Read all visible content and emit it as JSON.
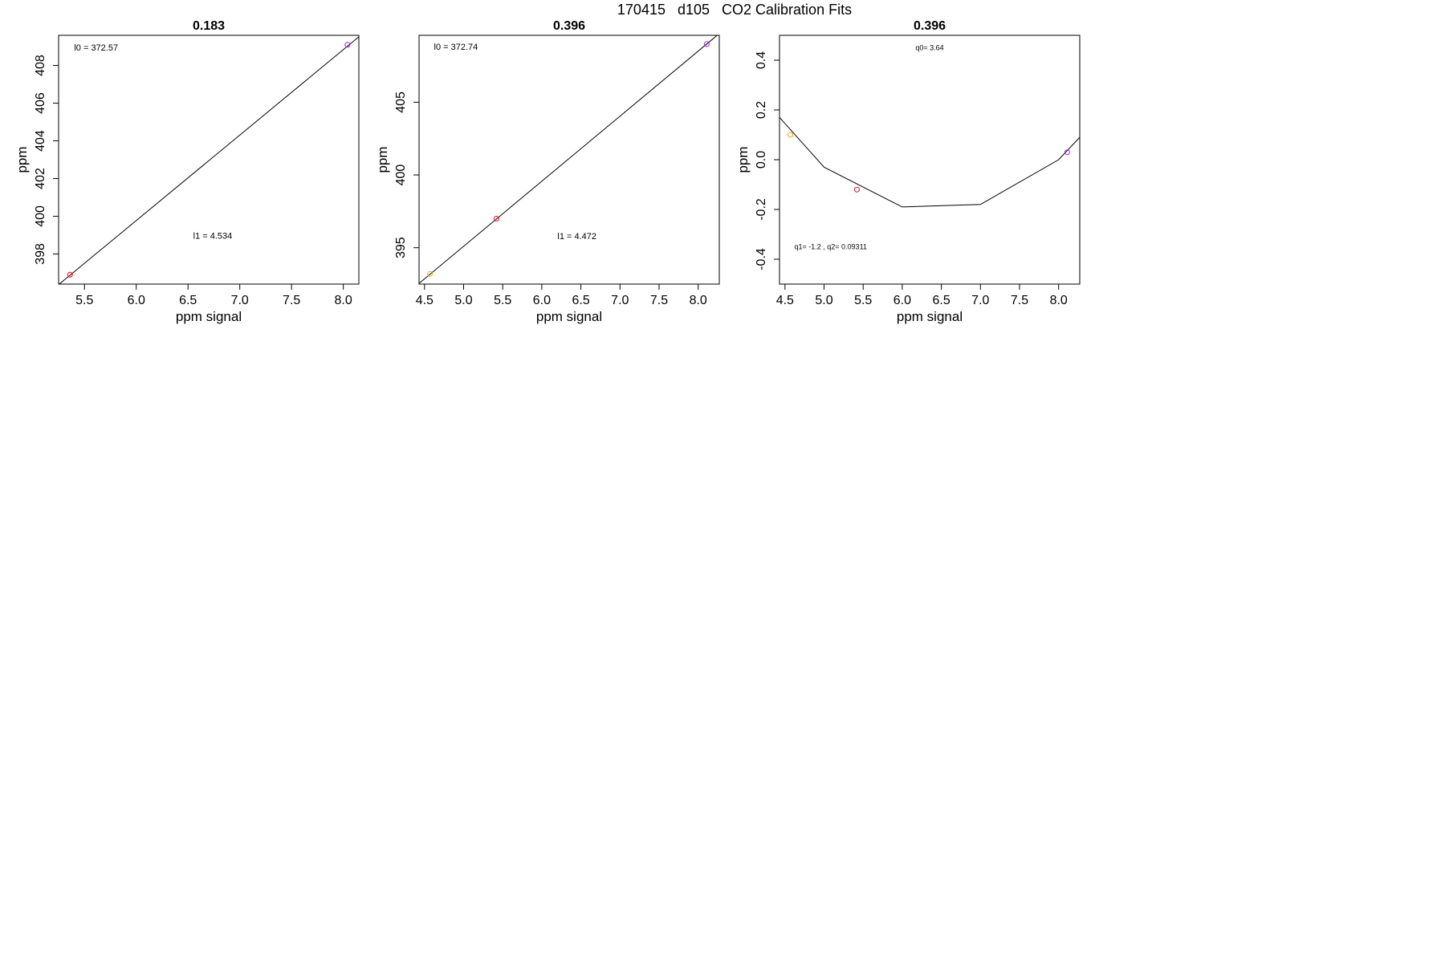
{
  "figure_title": "170415   d105   CO2 Calibration Fits",
  "chart_data": [
    {
      "type": "scatter",
      "title": "0.183",
      "xlabel": "ppm signal",
      "ylabel": "ppm",
      "xlim": [
        5.25,
        8.15
      ],
      "ylim": [
        396.4,
        409.6
      ],
      "xticks": [
        "5.5",
        "6.0",
        "6.5",
        "7.0",
        "7.5",
        "8.0"
      ],
      "yticks": [
        "398",
        "400",
        "402",
        "404",
        "406",
        "408"
      ],
      "annotations": [
        {
          "id": "l0",
          "text": "l0 =  372.57",
          "x": 5.4,
          "y": 408.8
        },
        {
          "id": "l1",
          "text": "l1 =  4.534",
          "x": 6.55,
          "y": 398.8
        }
      ],
      "points": [
        {
          "x": 5.36,
          "y": 396.9,
          "color": "#ff0000"
        },
        {
          "x": 8.04,
          "y": 409.1,
          "color": "#a020f0"
        }
      ],
      "fit_line": {
        "x": [
          5.25,
          8.15
        ],
        "y": [
          396.37,
          409.52
        ]
      }
    },
    {
      "type": "scatter",
      "title": "0.396",
      "xlabel": "ppm signal",
      "ylabel": "ppm",
      "xlim": [
        4.43,
        8.27
      ],
      "ylim": [
        392.5,
        409.6
      ],
      "xticks": [
        "4.5",
        "5.0",
        "5.5",
        "6.0",
        "6.5",
        "7.0",
        "7.5",
        "8.0"
      ],
      "yticks": [
        "395",
        "400",
        "405"
      ],
      "annotations": [
        {
          "id": "l0",
          "text": "l0 =  372.74",
          "x": 4.62,
          "y": 408.6
        },
        {
          "id": "l1",
          "text": "l1 =  4.472",
          "x": 6.2,
          "y": 395.6
        }
      ],
      "points": [
        {
          "x": 4.57,
          "y": 393.2,
          "color": "#ffa500"
        },
        {
          "x": 5.42,
          "y": 397.0,
          "color": "#ff0000"
        },
        {
          "x": 8.11,
          "y": 409.0,
          "color": "#a020f0"
        }
      ],
      "fit_line": {
        "x": [
          4.43,
          8.27
        ],
        "y": [
          392.55,
          409.72
        ]
      }
    },
    {
      "type": "scatter",
      "title": "0.396",
      "xlabel": "ppm signal",
      "ylabel": "ppm",
      "xlim": [
        4.43,
        8.27
      ],
      "ylim": [
        -0.5,
        0.5
      ],
      "xticks": [
        "4.5",
        "5.0",
        "5.5",
        "6.0",
        "6.5",
        "7.0",
        "7.5",
        "8.0"
      ],
      "yticks": [
        "-0.4",
        "-0.2",
        "0.0",
        "0.2",
        "0.4"
      ],
      "annotations": [
        {
          "id": "q0",
          "text": "q0= 3.64",
          "x": 6.35,
          "y": 0.44
        },
        {
          "id": "q12",
          "text": "q1= -1.2 , q2= 0.09311",
          "x": 4.62,
          "y": -0.36
        }
      ],
      "points": [
        {
          "x": 4.57,
          "y": 0.1,
          "color": "#ffa500"
        },
        {
          "x": 5.42,
          "y": -0.12,
          "color": "#ff0000"
        },
        {
          "x": 8.11,
          "y": 0.03,
          "color": "#a020f0"
        }
      ],
      "fit_line": {
        "x": [
          4.43,
          5.0,
          6.0,
          7.0,
          8.0,
          8.27
        ],
        "y": [
          0.17,
          -0.03,
          -0.19,
          -0.18,
          0.0,
          0.09
        ]
      }
    }
  ]
}
